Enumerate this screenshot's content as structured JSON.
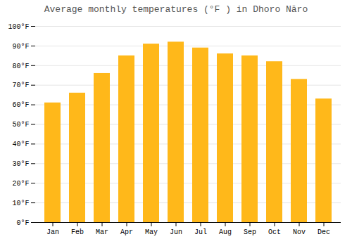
{
  "chart_data": {
    "type": "bar",
    "title": "Average monthly temperatures (°F ) in Dhoro Nāro",
    "categories": [
      "Jan",
      "Feb",
      "Mar",
      "Apr",
      "May",
      "Jun",
      "Jul",
      "Aug",
      "Sep",
      "Oct",
      "Nov",
      "Dec"
    ],
    "values": [
      61,
      66,
      76,
      85,
      91,
      92,
      89,
      86,
      85,
      82,
      73,
      63
    ],
    "color": "#FFB81A",
    "ylim": [
      0,
      100
    ],
    "yticks": [
      {
        "value": 0,
        "label": "0°F"
      },
      {
        "value": 10,
        "label": "10°F"
      },
      {
        "value": 20,
        "label": "20°F"
      },
      {
        "value": 30,
        "label": "30°F"
      },
      {
        "value": 40,
        "label": "40°F"
      },
      {
        "value": 50,
        "label": "50°F"
      },
      {
        "value": 60,
        "label": "60°F"
      },
      {
        "value": 70,
        "label": "70°F"
      },
      {
        "value": 80,
        "label": "80°F"
      },
      {
        "value": 90,
        "label": "90°F"
      },
      {
        "value": 100,
        "label": "100°F"
      }
    ],
    "grid": true
  }
}
